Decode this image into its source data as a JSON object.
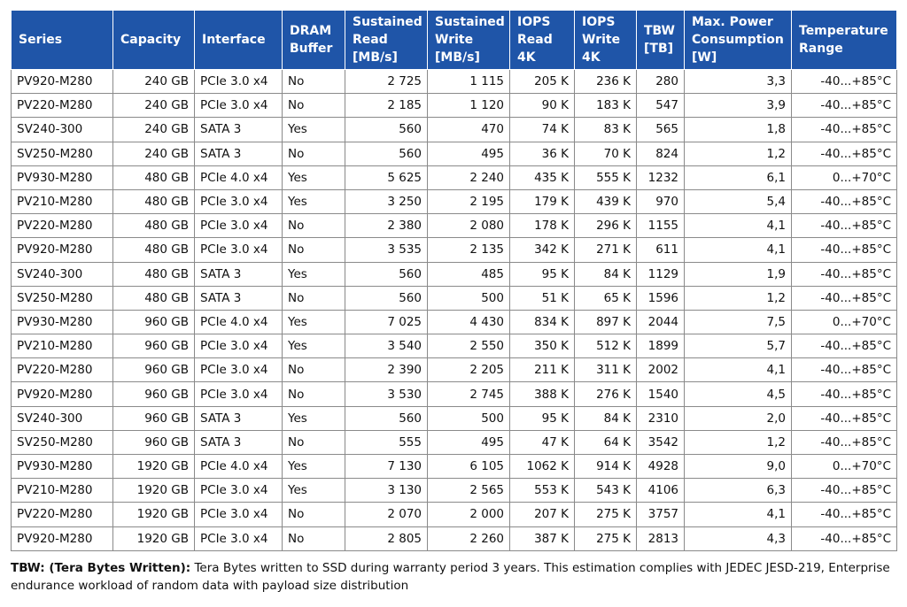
{
  "headers": [
    "Series",
    "Capacity",
    "Interface",
    "DRAM Buffer",
    "Sustained Read [MB/s]",
    "Sustained Write [MB/s]",
    "IOPS Read 4K",
    "IOPS Write 4K",
    "TBW [TB]",
    "Max. Power Consumption [W]",
    "Temperature Range"
  ],
  "rows": [
    [
      "PV920-M280",
      "240 GB",
      "PCIe 3.0 x4",
      "No",
      "2 725",
      "1 115",
      "205 K",
      "236 K",
      "280",
      "3,3",
      "-40...+85°C"
    ],
    [
      "PV220-M280",
      "240 GB",
      "PCIe 3.0 x4",
      "No",
      "2 185",
      "1 120",
      "90 K",
      "183 K",
      "547",
      "3,9",
      "-40...+85°C"
    ],
    [
      "SV240-300",
      "240 GB",
      "SATA 3",
      "Yes",
      "560",
      "470",
      "74 K",
      "83 K",
      "565",
      "1,8",
      "-40...+85°C"
    ],
    [
      "SV250-M280",
      "240 GB",
      "SATA 3",
      "No",
      "560",
      "495",
      "36 K",
      "70 K",
      "824",
      "1,2",
      "-40...+85°C"
    ],
    [
      "PV930-M280",
      "480 GB",
      "PCIe 4.0 x4",
      "Yes",
      "5 625",
      "2 240",
      "435 K",
      "555 K",
      "1232",
      "6,1",
      "0...+70°C"
    ],
    [
      "PV210-M280",
      "480 GB",
      "PCIe 3.0 x4",
      "Yes",
      "3 250",
      "2 195",
      "179 K",
      "439 K",
      "970",
      "5,4",
      "-40...+85°C"
    ],
    [
      "PV220-M280",
      "480 GB",
      "PCIe 3.0 x4",
      "No",
      "2 380",
      "2 080",
      "178 K",
      "296 K",
      "1155",
      "4,1",
      "-40...+85°C"
    ],
    [
      "PV920-M280",
      "480 GB",
      "PCIe 3.0 x4",
      "No",
      "3 535",
      "2 135",
      "342 K",
      "271 K",
      "611",
      "4,1",
      "-40...+85°C"
    ],
    [
      "SV240-300",
      "480 GB",
      "SATA 3",
      "Yes",
      "560",
      "485",
      "95 K",
      "84 K",
      "1129",
      "1,9",
      "-40...+85°C"
    ],
    [
      "SV250-M280",
      "480 GB",
      "SATA 3",
      "No",
      "560",
      "500",
      "51 K",
      "65 K",
      "1596",
      "1,2",
      "-40...+85°C"
    ],
    [
      "PV930-M280",
      "960 GB",
      "PCIe 4.0 x4",
      "Yes",
      "7 025",
      "4 430",
      "834 K",
      "897 K",
      "2044",
      "7,5",
      "0...+70°C"
    ],
    [
      "PV210-M280",
      "960 GB",
      "PCIe 3.0 x4",
      "Yes",
      "3 540",
      "2 550",
      "350 K",
      "512 K",
      "1899",
      "5,7",
      "-40...+85°C"
    ],
    [
      "PV220-M280",
      "960 GB",
      "PCIe 3.0 x4",
      "No",
      "2 390",
      "2 205",
      "211 K",
      "311 K",
      "2002",
      "4,1",
      "-40...+85°C"
    ],
    [
      "PV920-M280",
      "960 GB",
      "PCIe 3.0 x4",
      "No",
      "3 530",
      "2 745",
      "388 K",
      "276 K",
      "1540",
      "4,5",
      "-40...+85°C"
    ],
    [
      "SV240-300",
      "960 GB",
      "SATA 3",
      "Yes",
      "560",
      "500",
      "95 K",
      "84 K",
      "2310",
      "2,0",
      "-40...+85°C"
    ],
    [
      "SV250-M280",
      "960 GB",
      "SATA 3",
      "No",
      "555",
      "495",
      "47 K",
      "64 K",
      "3542",
      "1,2",
      "-40...+85°C"
    ],
    [
      "PV930-M280",
      "1920 GB",
      "PCIe 4.0 x4",
      "Yes",
      "7 130",
      "6 105",
      "1062 K",
      "914 K",
      "4928",
      "9,0",
      "0...+70°C"
    ],
    [
      "PV210-M280",
      "1920 GB",
      "PCIe 3.0 x4",
      "Yes",
      "3 130",
      "2 565",
      "553 K",
      "543 K",
      "4106",
      "6,3",
      "-40...+85°C"
    ],
    [
      "PV220-M280",
      "1920 GB",
      "PCIe 3.0 x4",
      "No",
      "2 070",
      "2 000",
      "207 K",
      "275 K",
      "3757",
      "4,1",
      "-40...+85°C"
    ],
    [
      "PV920-M280",
      "1920 GB",
      "PCIe 3.0 x4",
      "No",
      "2 805",
      "2 260",
      "387 K",
      "275 K",
      "2813",
      "4,3",
      "-40...+85°C"
    ]
  ],
  "footnote": {
    "term": "TBW: (Tera Bytes Written):",
    "text": " Tera Bytes written to SSD during warranty period 3 years. This estimation complies with JEDEC JESD-219, Enterprise endurance workload of random data with payload size distribution"
  },
  "colors": {
    "header_bg": "#1f55a8",
    "header_text": "#ffffff",
    "grid": "#8a8a8a"
  }
}
